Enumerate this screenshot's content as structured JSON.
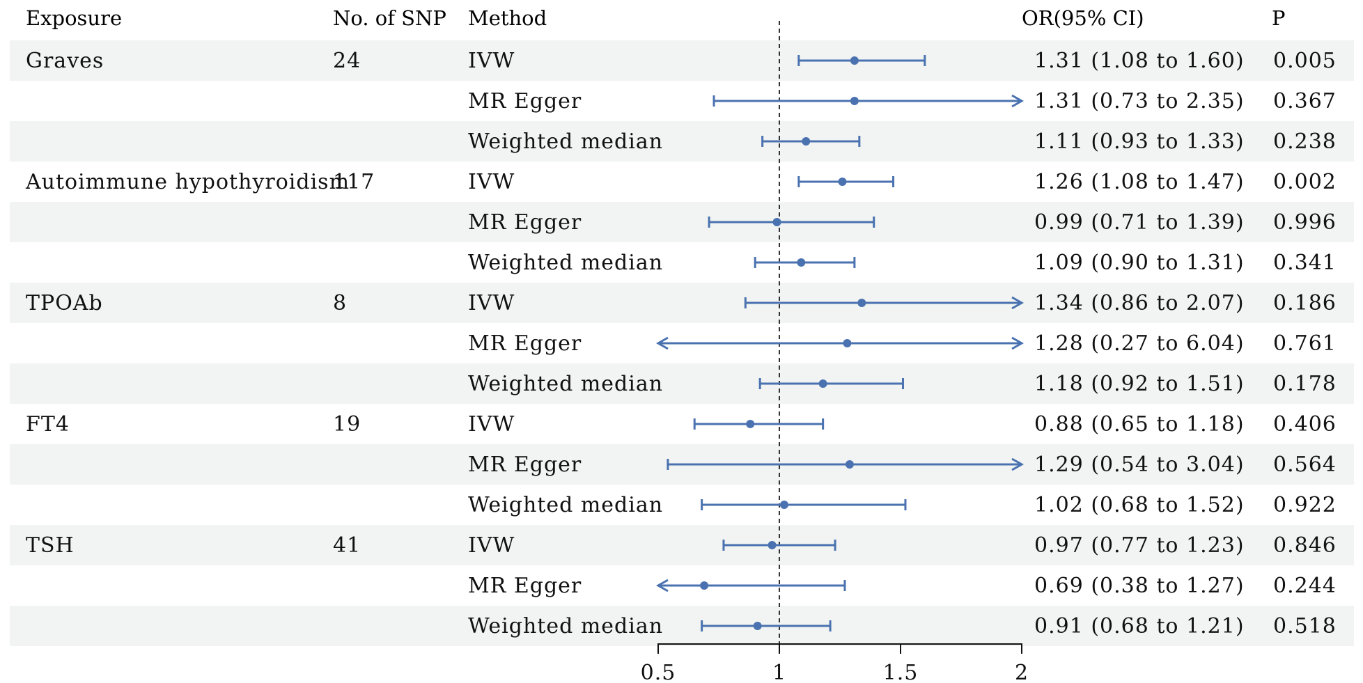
{
  "headers": {
    "exposure": "Exposure",
    "nsnp": "No. of SNP",
    "method": "Method",
    "or": "OR(95% CI)",
    "p": "P"
  },
  "colors": {
    "point": "#4a72b0",
    "stripe": "#f1f4f2",
    "refline": "#333333",
    "text": "#111111"
  },
  "chart_data": {
    "type": "forest",
    "x_axis": {
      "range": [
        0.5,
        2.0
      ],
      "ticks": [
        "0.5",
        "1",
        "1.5",
        "2"
      ],
      "tick_values": [
        0.5,
        1,
        1.5,
        2
      ]
    },
    "reference_line": 1,
    "rows": [
      {
        "exposure": "Graves",
        "nsnp": "24",
        "method": "IVW",
        "or": 1.31,
        "lo": 1.08,
        "hi": 1.6,
        "or_text": "1.31 (1.08 to 1.60)",
        "p": "0.005"
      },
      {
        "exposure": "",
        "nsnp": "",
        "method": "MR Egger",
        "or": 1.31,
        "lo": 0.73,
        "hi": 2.35,
        "or_text": "1.31 (0.73 to 2.35)",
        "p": "0.367"
      },
      {
        "exposure": "",
        "nsnp": "",
        "method": "Weighted median",
        "or": 1.11,
        "lo": 0.93,
        "hi": 1.33,
        "or_text": "1.11 (0.93 to 1.33)",
        "p": "0.238"
      },
      {
        "exposure": "Autoimmune hypothyroidism",
        "nsnp": "117",
        "method": "IVW",
        "or": 1.26,
        "lo": 1.08,
        "hi": 1.47,
        "or_text": "1.26 (1.08 to 1.47)",
        "p": "0.002"
      },
      {
        "exposure": "",
        "nsnp": "",
        "method": "MR Egger",
        "or": 0.99,
        "lo": 0.71,
        "hi": 1.39,
        "or_text": "0.99 (0.71 to 1.39)",
        "p": "0.996"
      },
      {
        "exposure": "",
        "nsnp": "",
        "method": "Weighted median",
        "or": 1.09,
        "lo": 0.9,
        "hi": 1.31,
        "or_text": "1.09 (0.90 to 1.31)",
        "p": "0.341"
      },
      {
        "exposure": "TPOAb",
        "nsnp": "8",
        "method": "IVW",
        "or": 1.34,
        "lo": 0.86,
        "hi": 2.07,
        "or_text": "1.34 (0.86 to 2.07)",
        "p": "0.186"
      },
      {
        "exposure": "",
        "nsnp": "",
        "method": "MR Egger",
        "or": 1.28,
        "lo": 0.27,
        "hi": 6.04,
        "or_text": "1.28 (0.27 to 6.04)",
        "p": "0.761"
      },
      {
        "exposure": "",
        "nsnp": "",
        "method": "Weighted median",
        "or": 1.18,
        "lo": 0.92,
        "hi": 1.51,
        "or_text": "1.18 (0.92 to 1.51)",
        "p": "0.178"
      },
      {
        "exposure": "FT4",
        "nsnp": "19",
        "method": "IVW",
        "or": 0.88,
        "lo": 0.65,
        "hi": 1.18,
        "or_text": "0.88 (0.65 to 1.18)",
        "p": "0.406"
      },
      {
        "exposure": "",
        "nsnp": "",
        "method": "MR Egger",
        "or": 1.29,
        "lo": 0.54,
        "hi": 3.04,
        "or_text": "1.29 (0.54 to 3.04)",
        "p": "0.564"
      },
      {
        "exposure": "",
        "nsnp": "",
        "method": "Weighted median",
        "or": 1.02,
        "lo": 0.68,
        "hi": 1.52,
        "or_text": "1.02 (0.68 to 1.52)",
        "p": "0.922"
      },
      {
        "exposure": "TSH",
        "nsnp": "41",
        "method": "IVW",
        "or": 0.97,
        "lo": 0.77,
        "hi": 1.23,
        "or_text": "0.97 (0.77 to 1.23)",
        "p": "0.846"
      },
      {
        "exposure": "",
        "nsnp": "",
        "method": "MR Egger",
        "or": 0.69,
        "lo": 0.38,
        "hi": 1.27,
        "or_text": "0.69 (0.38 to 1.27)",
        "p": "0.244"
      },
      {
        "exposure": "",
        "nsnp": "",
        "method": "Weighted median",
        "or": 0.91,
        "lo": 0.68,
        "hi": 1.21,
        "or_text": "0.91 (0.68 to 1.21)",
        "p": "0.518"
      }
    ]
  }
}
